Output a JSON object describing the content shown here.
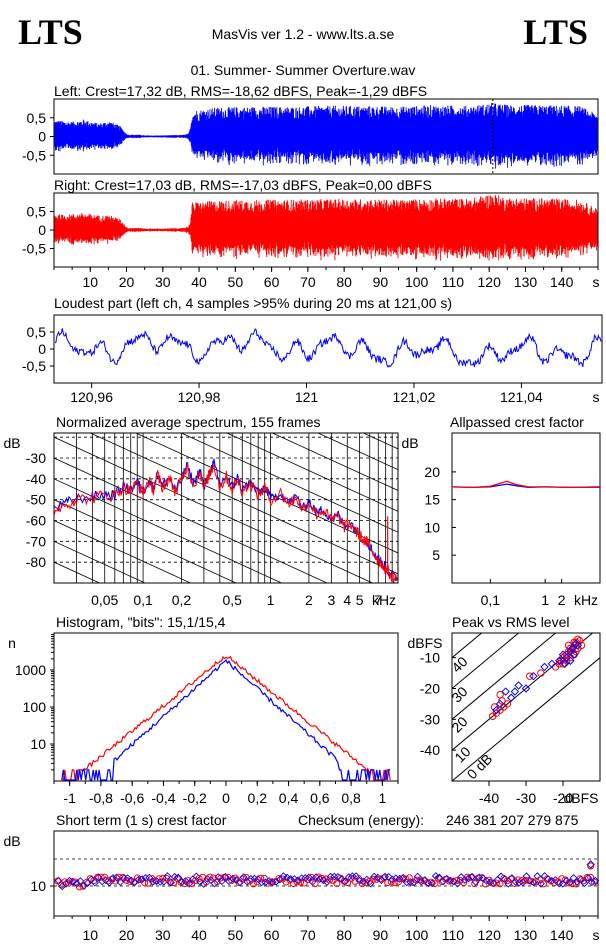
{
  "header": {
    "logo_left": "LTS",
    "logo_right": "LTS",
    "app_title": "MasVis ver 1.2 - www.lts.a.se",
    "file_name": "01. Summer- Summer Overture.wav"
  },
  "colors": {
    "left": "#0000ff",
    "right": "#ff0000",
    "grid": "#000000"
  },
  "chart_data": [
    {
      "id": "left-waveform",
      "type": "line",
      "title": "Left: Crest=17,32 dB, RMS=-18,62 dBFS, Peak=-1,29 dBFS",
      "y_ticks": [
        "0,5",
        "0",
        "-0,5"
      ],
      "ylim": [
        -1,
        1
      ],
      "xlim": [
        0,
        150
      ],
      "series": [
        {
          "color": "blue"
        }
      ],
      "marker_x": 121,
      "envelope": [
        [
          0,
          0.45
        ],
        [
          2,
          0.42
        ],
        [
          5,
          0.4
        ],
        [
          8,
          0.46
        ],
        [
          12,
          0.35
        ],
        [
          15,
          0.42
        ],
        [
          18,
          0.28
        ],
        [
          20,
          0.05
        ],
        [
          23,
          0.05
        ],
        [
          25,
          0.03
        ],
        [
          30,
          0.03
        ],
        [
          33,
          0.04
        ],
        [
          35,
          0.04
        ],
        [
          36,
          0.05
        ],
        [
          37,
          0.08
        ],
        [
          37.5,
          0.25
        ],
        [
          38,
          0.7
        ],
        [
          45,
          0.78
        ],
        [
          55,
          0.8
        ],
        [
          65,
          0.8
        ],
        [
          75,
          0.82
        ],
        [
          85,
          0.82
        ],
        [
          95,
          0.8
        ],
        [
          105,
          0.84
        ],
        [
          115,
          0.82
        ],
        [
          121,
          0.9
        ],
        [
          125,
          0.85
        ],
        [
          135,
          0.84
        ],
        [
          145,
          0.82
        ],
        [
          150,
          0.6
        ]
      ]
    },
    {
      "id": "right-waveform",
      "type": "line",
      "title": "Right: Crest=17,03 dB, RMS=-17,03 dBFS, Peak=0,00 dBFS",
      "y_ticks": [
        "0,5",
        "0",
        "-0,5"
      ],
      "ylim": [
        -1,
        1
      ],
      "xlim": [
        0,
        150
      ],
      "series": [
        {
          "color": "red"
        }
      ],
      "x_ticks": [
        "10",
        "20",
        "30",
        "40",
        "50",
        "60",
        "70",
        "80",
        "90",
        "100",
        "110",
        "120",
        "130",
        "140"
      ],
      "x_unit": "s",
      "envelope": [
        [
          0,
          0.45
        ],
        [
          2,
          0.42
        ],
        [
          5,
          0.44
        ],
        [
          8,
          0.46
        ],
        [
          12,
          0.4
        ],
        [
          15,
          0.4
        ],
        [
          18,
          0.3
        ],
        [
          20,
          0.06
        ],
        [
          23,
          0.06
        ],
        [
          25,
          0.04
        ],
        [
          30,
          0.04
        ],
        [
          33,
          0.05
        ],
        [
          35,
          0.05
        ],
        [
          37,
          0.1
        ],
        [
          37.5,
          0.3
        ],
        [
          38,
          0.75
        ],
        [
          45,
          0.8
        ],
        [
          55,
          0.82
        ],
        [
          65,
          0.82
        ],
        [
          75,
          0.84
        ],
        [
          85,
          0.84
        ],
        [
          95,
          0.82
        ],
        [
          105,
          0.86
        ],
        [
          115,
          0.85
        ],
        [
          121,
          1.0
        ],
        [
          125,
          0.88
        ],
        [
          135,
          0.86
        ],
        [
          145,
          0.82
        ],
        [
          150,
          0.6
        ]
      ]
    },
    {
      "id": "loudest-part",
      "type": "line",
      "title": "Loudest part (left  ch, 4 samples >95% during 20 ms at 121,00 s)",
      "y_ticks": [
        "0,5",
        "0",
        "-0,5"
      ],
      "ylim": [
        -1,
        1
      ],
      "x_ticks": [
        "120,96",
        "120,98",
        "121",
        "121,02",
        "121,04"
      ],
      "x_unit": "s",
      "xlim": [
        120.953,
        121.055
      ],
      "series": [
        {
          "color": "blue"
        }
      ]
    },
    {
      "id": "avg-spectrum",
      "type": "line",
      "title": "Normalized average spectrum, 155 frames",
      "ylabel": "dB",
      "y_ticks": [
        "-30",
        "-40",
        "-50",
        "-60",
        "-70",
        "-80"
      ],
      "ylim": [
        -90,
        -18
      ],
      "x_ticks": [
        "0,05",
        "0,1",
        "0,2",
        "0,5",
        "1",
        "2",
        "3",
        "4",
        "5",
        "7"
      ],
      "x_unit": "kHz",
      "x_tick_values": [
        0.05,
        0.1,
        0.2,
        0.5,
        1,
        2,
        3,
        4,
        5,
        7
      ],
      "xlim_khz": [
        0.02,
        10
      ],
      "points": [
        [
          0.02,
          -55
        ],
        [
          0.025,
          -52
        ],
        [
          0.03,
          -50
        ],
        [
          0.04,
          -49
        ],
        [
          0.05,
          -48
        ],
        [
          0.06,
          -48
        ],
        [
          0.07,
          -44
        ],
        [
          0.08,
          -46
        ],
        [
          0.09,
          -42
        ],
        [
          0.1,
          -47
        ],
        [
          0.11,
          -41
        ],
        [
          0.12,
          -45
        ],
        [
          0.13,
          -38
        ],
        [
          0.14,
          -44
        ],
        [
          0.16,
          -40
        ],
        [
          0.18,
          -46
        ],
        [
          0.2,
          -41
        ],
        [
          0.22,
          -34
        ],
        [
          0.25,
          -43
        ],
        [
          0.28,
          -36
        ],
        [
          0.3,
          -45
        ],
        [
          0.33,
          -38
        ],
        [
          0.36,
          -33
        ],
        [
          0.4,
          -44
        ],
        [
          0.45,
          -39
        ],
        [
          0.5,
          -45
        ],
        [
          0.55,
          -40
        ],
        [
          0.6,
          -46
        ],
        [
          0.7,
          -42
        ],
        [
          0.8,
          -48
        ],
        [
          0.9,
          -44
        ],
        [
          1,
          -50
        ],
        [
          1.2,
          -47
        ],
        [
          1.4,
          -52
        ],
        [
          1.6,
          -49
        ],
        [
          1.8,
          -55
        ],
        [
          2,
          -51
        ],
        [
          2.3,
          -57
        ],
        [
          2.6,
          -55
        ],
        [
          3,
          -60
        ],
        [
          3.4,
          -58
        ],
        [
          3.8,
          -63
        ],
        [
          4.3,
          -62
        ],
        [
          4.8,
          -66
        ],
        [
          5.3,
          -69
        ],
        [
          5.8,
          -71
        ],
        [
          6.3,
          -75
        ],
        [
          6.8,
          -78
        ],
        [
          7.5,
          -81
        ],
        [
          8.2,
          -84
        ],
        [
          9,
          -87
        ],
        [
          10,
          -89
        ]
      ]
    },
    {
      "id": "allpassed-crest",
      "type": "line",
      "title": "Allpassed crest factor",
      "ylabel": "dB",
      "y_ticks": [
        "20",
        "15",
        "10",
        "5"
      ],
      "ylim": [
        0,
        27
      ],
      "x_ticks": [
        "0,1",
        "1",
        "2"
      ],
      "x_unit": "kHz",
      "x_tick_values": [
        0.1,
        1,
        2
      ],
      "xlim_khz": [
        0.02,
        10
      ],
      "series": [
        {
          "color": "blue",
          "points": [
            [
              0.02,
              17.3
            ],
            [
              0.05,
              17.2
            ],
            [
              0.1,
              17.3
            ],
            [
              0.2,
              17.8
            ],
            [
              0.3,
              17.5
            ],
            [
              0.5,
              17.2
            ],
            [
              1,
              17.3
            ],
            [
              3,
              17.2
            ],
            [
              10,
              17.3
            ]
          ]
        },
        {
          "color": "red",
          "points": [
            [
              0.02,
              17.3
            ],
            [
              0.05,
              17.2
            ],
            [
              0.1,
              17.4
            ],
            [
              0.2,
              18.3
            ],
            [
              0.3,
              17.7
            ],
            [
              0.5,
              17.3
            ],
            [
              1,
              17.3
            ],
            [
              3,
              17.2
            ],
            [
              10,
              17.2
            ]
          ]
        }
      ]
    },
    {
      "id": "histogram",
      "type": "line",
      "title": "Histogram, \"bits\": 15,1/15,4",
      "ylabel": "n",
      "y_ticks": [
        "1000",
        "100",
        "10"
      ],
      "y_log": true,
      "ylim": [
        1,
        10000
      ],
      "x_ticks": [
        "-1",
        "-0,8",
        "-0,6",
        "-0,4",
        "-0,2",
        "0",
        "0,2",
        "0,4",
        "0,6",
        "0,8",
        "1"
      ],
      "xlim": [
        -1.1,
        1.1
      ],
      "series": [
        {
          "color": "red",
          "peak": 2500,
          "slope": 0.95,
          "floor_x": 0.92
        },
        {
          "color": "blue",
          "peak": 1800,
          "slope": 1.05,
          "floor_x": 0.72
        }
      ]
    },
    {
      "id": "peak-vs-rms",
      "type": "scatter",
      "title": "Peak vs RMS level",
      "ylabel": "dBFS",
      "xlabel": "dBFS",
      "y_ticks": [
        "-10",
        "-20",
        "-30",
        "-40"
      ],
      "ylim": [
        -50,
        -2
      ],
      "x_ticks": [
        "-40",
        "-30",
        "-20"
      ],
      "xlim": [
        -50,
        -10
      ],
      "diagonal_labels": [
        "40",
        "30",
        "20",
        "10",
        "0 dB"
      ],
      "series": [
        {
          "color": "red",
          "points": [
            [
              -39,
              -29
            ],
            [
              -38,
              -28
            ],
            [
              -37,
              -27
            ],
            [
              -38.5,
              -26
            ],
            [
              -36,
              -26
            ],
            [
              -36.5,
              -24
            ],
            [
              -35,
              -25
            ],
            [
              -37,
              -22
            ],
            [
              -29,
              -16
            ],
            [
              -26,
              -15
            ],
            [
              -22,
              -13
            ],
            [
              -21,
              -12
            ],
            [
              -20.5,
              -11
            ],
            [
              -20,
              -10
            ],
            [
              -19.5,
              -9.5
            ],
            [
              -19,
              -9
            ],
            [
              -18.5,
              -8
            ],
            [
              -18,
              -7
            ],
            [
              -17.5,
              -7.5
            ],
            [
              -17,
              -6
            ],
            [
              -16.5,
              -5
            ],
            [
              -16,
              -4
            ],
            [
              -15.5,
              -4.5
            ],
            [
              -20,
              -12
            ],
            [
              -19,
              -11
            ],
            [
              -18,
              -10
            ],
            [
              -17,
              -9
            ],
            [
              -16.5,
              -8
            ],
            [
              -15,
              -6
            ],
            [
              -18.5,
              -6
            ],
            [
              -17,
              -5
            ],
            [
              -16,
              -7
            ]
          ]
        },
        {
          "color": "blue",
          "points": [
            [
              -38,
              -27
            ],
            [
              -37,
              -25
            ],
            [
              -35.5,
              -21
            ],
            [
              -33,
              -21
            ],
            [
              -34,
              -23
            ],
            [
              -32,
              -19
            ],
            [
              -30,
              -20
            ],
            [
              -28,
              -16
            ],
            [
              -25,
              -13
            ],
            [
              -23,
              -12
            ],
            [
              -21,
              -11
            ],
            [
              -20,
              -9
            ],
            [
              -19,
              -10
            ],
            [
              -18,
              -8
            ],
            [
              -17,
              -9
            ],
            [
              -16,
              -6
            ],
            [
              -19.5,
              -12
            ],
            [
              -18,
              -11
            ],
            [
              -17.5,
              -7
            ],
            [
              -16.5,
              -5.5
            ]
          ]
        }
      ]
    },
    {
      "id": "short-term-crest",
      "type": "scatter",
      "title": "Short term (1 s) crest factor",
      "checksum_label": "Checksum (energy):",
      "checksum_value": "246 381 207 279 875",
      "ylabel": "dB",
      "y_ticks": [
        "10"
      ],
      "x_ticks": [
        "10",
        "20",
        "30",
        "40",
        "50",
        "60",
        "70",
        "80",
        "90",
        "100",
        "110",
        "120",
        "130",
        "140"
      ],
      "x_unit": "s",
      "xlim": [
        0,
        150
      ],
      "series": [
        {
          "color": "red"
        },
        {
          "color": "blue"
        }
      ]
    }
  ]
}
